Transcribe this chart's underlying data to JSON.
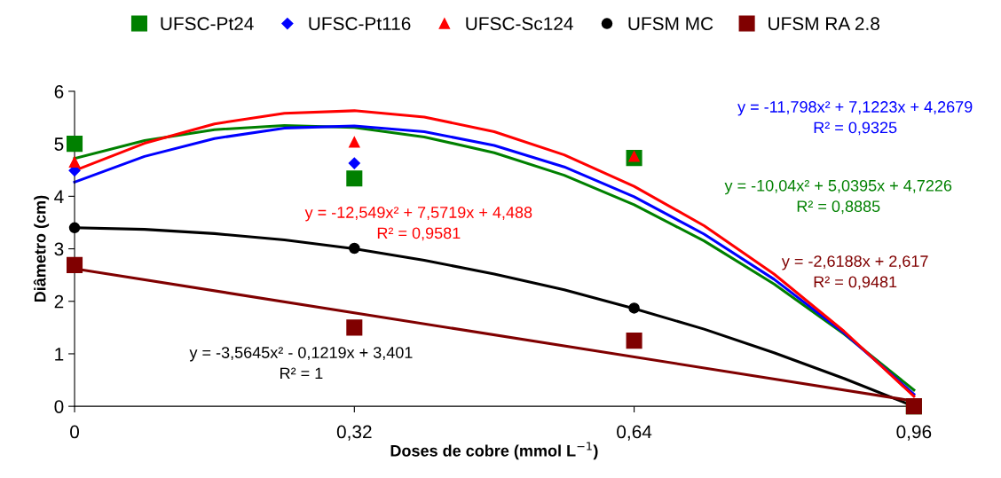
{
  "chart_data": {
    "type": "scatter",
    "xlabel": "Doses de cobre (mmol L$^{−1}$)",
    "ylabel": "Diâmetro (cm)",
    "xlim": [
      0,
      0.96
    ],
    "xticks": [
      0,
      {
        "value": 0.32,
        "label": "0,32"
      },
      {
        "value": 0.64,
        "label": "0,64"
      },
      {
        "value": 0.96,
        "label": "0,96"
      }
    ],
    "ylim": [
      0,
      6
    ],
    "yticks": [
      0,
      1,
      2,
      3,
      4,
      5,
      6
    ],
    "grid": false,
    "legend": "top",
    "series": [
      {
        "type": "line",
        "color": "#008000",
        "marker": "none",
        "x": [
          0,
          0.08,
          0.16,
          0.24,
          0.32,
          0.4,
          0.48,
          0.56,
          0.64,
          0.72,
          0.8,
          0.88,
          0.96
        ],
        "values": [
          4.72,
          5.06,
          5.27,
          5.35,
          5.31,
          5.13,
          4.83,
          4.4,
          3.84,
          3.15,
          2.33,
          1.38,
          0.31
        ]
      },
      {
        "type": "line",
        "color": "#0000ff",
        "marker": "none",
        "x": [
          0,
          0.08,
          0.16,
          0.24,
          0.32,
          0.4,
          0.48,
          0.56,
          0.64,
          0.72,
          0.8,
          0.88,
          0.96
        ],
        "values": [
          4.27,
          4.76,
          5.1,
          5.3,
          5.34,
          5.23,
          4.97,
          4.56,
          3.99,
          3.28,
          2.42,
          1.4,
          0.23
        ]
      },
      {
        "type": "line",
        "color": "#ff0000",
        "marker": "none",
        "x": [
          0,
          0.08,
          0.16,
          0.24,
          0.32,
          0.4,
          0.48,
          0.56,
          0.64,
          0.72,
          0.8,
          0.88,
          0.96
        ],
        "values": [
          4.49,
          5.01,
          5.38,
          5.58,
          5.63,
          5.51,
          5.23,
          4.79,
          4.19,
          3.44,
          2.52,
          1.43,
          0.19
        ]
      },
      {
        "type": "line",
        "color": "#000000",
        "marker": "none",
        "x": [
          0,
          0.08,
          0.16,
          0.24,
          0.32,
          0.4,
          0.48,
          0.56,
          0.64,
          0.72,
          0.8,
          0.88,
          0.96
        ],
        "values": [
          3.4,
          3.37,
          3.29,
          3.17,
          3.0,
          2.78,
          2.52,
          2.22,
          1.86,
          1.47,
          1.02,
          0.53,
          0
        ]
      },
      {
        "type": "line",
        "color": "#800000",
        "marker": "none",
        "x": [
          0,
          0.96
        ],
        "values": [
          2.62,
          0.1
        ]
      },
      {
        "name": "UFSC-Pt24",
        "color": "#008000",
        "marker": "square",
        "x": [
          0,
          0.32,
          0.64,
          0.96
        ],
        "values": [
          5.0,
          4.34,
          4.73,
          0
        ]
      },
      {
        "name": "UFSC-Pt116",
        "color": "#0000ff",
        "marker": "diamond",
        "x": [
          0,
          0.32
        ],
        "values": [
          4.49,
          4.63
        ]
      },
      {
        "name": "UFSC-Sc124",
        "color": "#ff0000",
        "marker": "triangle",
        "x": [
          0,
          0.32,
          0.64
        ],
        "values": [
          4.65,
          5.03,
          4.76
        ]
      },
      {
        "name": "UFSM MC",
        "color": "#000000",
        "marker": "circle",
        "x": [
          0,
          0.32,
          0.64
        ],
        "values": [
          3.4,
          3.01,
          1.87
        ]
      },
      {
        "name": "UFSM RA 2.8",
        "color": "#800000",
        "marker": "square",
        "x": [
          0,
          0.32,
          0.64,
          0.96
        ],
        "values": [
          2.69,
          1.5,
          1.25,
          0
        ]
      }
    ],
    "annotations": [
      "y = -11,798x² + 7,1223x + 4,2679\nR² = 0,9325",
      "y = -10,04x² + 5,0395x + 4,7226\nR² = 0,8885",
      "y = -12,549x² + 7,5719x + 4,488\nR² = 0,9581",
      "y = -2,6188x + 2,617\nR² = 0,9481",
      "y = -3,5645x² - 0,1219x + 3,401\nR² = 1"
    ]
  }
}
